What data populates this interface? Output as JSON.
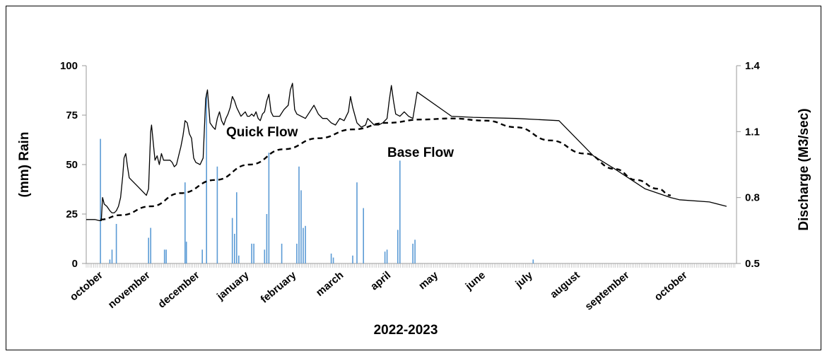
{
  "chart_data": {
    "type": "bar+line",
    "xlabel": "2022-2023",
    "ylabel_left": "(mm) Rain",
    "ylabel_right": "Discharge (M3/sec)",
    "y_left_lim": [
      0,
      100
    ],
    "y_left_ticks": [
      0,
      25,
      50,
      75,
      100
    ],
    "y_right_lim": [
      0.5,
      1.4
    ],
    "y_right_ticks": [
      0.5,
      0.8,
      1.1,
      1.4
    ],
    "months": [
      "october",
      "november",
      "december",
      "january",
      "february",
      "march",
      "april",
      "may",
      "june",
      "july",
      "august",
      "september",
      "october"
    ],
    "annotations": [
      "Quick Flow",
      "Base Flow"
    ],
    "rain": {
      "name": "Rain",
      "color": "#5b9bd5",
      "points": [
        [
          0.33,
          63
        ],
        [
          0.55,
          2
        ],
        [
          0.6,
          7
        ],
        [
          0.7,
          20
        ],
        [
          1.45,
          13
        ],
        [
          1.5,
          18
        ],
        [
          1.82,
          7
        ],
        [
          1.86,
          7
        ],
        [
          2.3,
          41
        ],
        [
          2.33,
          11
        ],
        [
          2.7,
          7
        ],
        [
          2.8,
          86
        ],
        [
          3.05,
          49
        ],
        [
          3.4,
          23
        ],
        [
          3.45,
          15
        ],
        [
          3.5,
          36
        ],
        [
          3.55,
          4
        ],
        [
          3.85,
          10
        ],
        [
          3.9,
          10
        ],
        [
          4.15,
          7
        ],
        [
          4.2,
          25
        ],
        [
          4.25,
          56
        ],
        [
          4.55,
          10
        ],
        [
          4.9,
          10
        ],
        [
          4.95,
          49
        ],
        [
          5.0,
          37
        ],
        [
          5.05,
          18
        ],
        [
          5.1,
          19
        ],
        [
          5.7,
          5
        ],
        [
          5.75,
          3
        ],
        [
          6.2,
          4
        ],
        [
          6.3,
          41
        ],
        [
          6.45,
          28
        ],
        [
          6.95,
          6
        ],
        [
          7.0,
          7
        ],
        [
          7.25,
          17
        ],
        [
          7.3,
          52
        ],
        [
          7.6,
          10
        ],
        [
          7.65,
          12
        ],
        [
          10.4,
          2
        ]
      ]
    },
    "discharge": {
      "name": "Discharge",
      "color": "#000000",
      "points": [
        [
          0,
          0.7
        ],
        [
          0.1,
          0.7
        ],
        [
          0.2,
          0.7
        ],
        [
          0.3,
          0.695
        ],
        [
          0.35,
          0.695
        ],
        [
          0.38,
          0.8
        ],
        [
          0.42,
          0.77
        ],
        [
          0.48,
          0.76
        ],
        [
          0.55,
          0.74
        ],
        [
          0.6,
          0.73
        ],
        [
          0.65,
          0.73
        ],
        [
          0.7,
          0.74
        ],
        [
          0.75,
          0.76
        ],
        [
          0.8,
          0.8
        ],
        [
          0.85,
          0.9
        ],
        [
          0.88,
          0.98
        ],
        [
          0.92,
          1.0
        ],
        [
          0.96,
          0.94
        ],
        [
          1.0,
          0.89
        ],
        [
          1.2,
          0.85
        ],
        [
          1.4,
          0.81
        ],
        [
          1.45,
          0.84
        ],
        [
          1.48,
          1.0
        ],
        [
          1.5,
          1.1
        ],
        [
          1.52,
          1.13
        ],
        [
          1.56,
          1.05
        ],
        [
          1.6,
          0.97
        ],
        [
          1.65,
          0.99
        ],
        [
          1.7,
          0.95
        ],
        [
          1.75,
          1.0
        ],
        [
          1.8,
          0.97
        ],
        [
          1.85,
          0.97
        ],
        [
          1.95,
          0.97
        ],
        [
          2.0,
          0.96
        ],
        [
          2.05,
          0.94
        ],
        [
          2.1,
          0.95
        ],
        [
          2.15,
          0.99
        ],
        [
          2.2,
          1.03
        ],
        [
          2.25,
          1.08
        ],
        [
          2.28,
          1.12
        ],
        [
          2.3,
          1.15
        ],
        [
          2.35,
          1.14
        ],
        [
          2.4,
          1.09
        ],
        [
          2.45,
          1.07
        ],
        [
          2.5,
          0.98
        ],
        [
          2.55,
          0.96
        ],
        [
          2.65,
          0.95
        ],
        [
          2.72,
          0.98
        ],
        [
          2.78,
          1.25
        ],
        [
          2.82,
          1.29
        ],
        [
          2.88,
          1.14
        ],
        [
          2.95,
          1.12
        ],
        [
          3.0,
          1.11
        ],
        [
          3.05,
          1.16
        ],
        [
          3.1,
          1.19
        ],
        [
          3.15,
          1.15
        ],
        [
          3.2,
          1.13
        ],
        [
          3.25,
          1.16
        ],
        [
          3.3,
          1.18
        ],
        [
          3.35,
          1.21
        ],
        [
          3.4,
          1.26
        ],
        [
          3.45,
          1.24
        ],
        [
          3.5,
          1.21
        ],
        [
          3.55,
          1.19
        ],
        [
          3.6,
          1.17
        ],
        [
          3.65,
          1.18
        ],
        [
          3.7,
          1.19
        ],
        [
          3.75,
          1.17
        ],
        [
          3.8,
          1.17
        ],
        [
          3.85,
          1.18
        ],
        [
          3.9,
          1.17
        ],
        [
          3.95,
          1.19
        ],
        [
          4.0,
          1.16
        ],
        [
          4.05,
          1.15
        ],
        [
          4.1,
          1.18
        ],
        [
          4.15,
          1.19
        ],
        [
          4.2,
          1.24
        ],
        [
          4.25,
          1.27
        ],
        [
          4.3,
          1.19
        ],
        [
          4.35,
          1.17
        ],
        [
          4.4,
          1.17
        ],
        [
          4.5,
          1.17
        ],
        [
          4.6,
          1.2
        ],
        [
          4.7,
          1.22
        ],
        [
          4.75,
          1.29
        ],
        [
          4.8,
          1.32
        ],
        [
          4.85,
          1.2
        ],
        [
          4.9,
          1.18
        ],
        [
          5.0,
          1.17
        ],
        [
          5.1,
          1.16
        ],
        [
          5.2,
          1.19
        ],
        [
          5.3,
          1.22
        ],
        [
          5.4,
          1.18
        ],
        [
          5.5,
          1.16
        ],
        [
          5.6,
          1.16
        ],
        [
          5.7,
          1.14
        ],
        [
          5.8,
          1.13
        ],
        [
          5.9,
          1.16
        ],
        [
          6.0,
          1.15
        ],
        [
          6.1,
          1.19
        ],
        [
          6.15,
          1.26
        ],
        [
          6.2,
          1.21
        ],
        [
          6.3,
          1.14
        ],
        [
          6.4,
          1.12
        ],
        [
          6.5,
          1.13
        ],
        [
          6.55,
          1.16
        ],
        [
          6.6,
          1.15
        ],
        [
          6.7,
          1.13
        ],
        [
          6.8,
          1.13
        ],
        [
          6.9,
          1.14
        ],
        [
          7.0,
          1.16
        ],
        [
          7.05,
          1.24
        ],
        [
          7.1,
          1.31
        ],
        [
          7.15,
          1.24
        ],
        [
          7.2,
          1.18
        ],
        [
          7.3,
          1.17
        ],
        [
          7.4,
          1.19
        ],
        [
          7.5,
          1.17
        ],
        [
          7.6,
          1.16
        ],
        [
          7.7,
          1.28
        ],
        [
          8.5,
          1.17
        ],
        [
          9.0,
          1.165
        ],
        [
          10.0,
          1.16
        ],
        [
          11.0,
          1.15
        ],
        [
          11.8,
          0.99
        ],
        [
          12.3,
          0.93
        ],
        [
          13.0,
          0.84
        ],
        [
          13.6,
          0.8
        ],
        [
          13.8,
          0.79
        ],
        [
          14.5,
          0.78
        ],
        [
          14.9,
          0.76
        ]
      ]
    },
    "base_flow": {
      "name": "Base Flow",
      "color": "#000000",
      "points": [
        [
          0.33,
          0.7
        ],
        [
          0.8,
          0.72
        ],
        [
          1.5,
          0.76
        ],
        [
          2.2,
          0.82
        ],
        [
          3.0,
          0.88
        ],
        [
          3.8,
          0.95
        ],
        [
          4.6,
          1.02
        ],
        [
          5.4,
          1.07
        ],
        [
          6.2,
          1.11
        ],
        [
          7.0,
          1.14
        ],
        [
          7.8,
          1.155
        ],
        [
          8.5,
          1.16
        ],
        [
          9.3,
          1.15
        ],
        [
          10.0,
          1.12
        ],
        [
          10.8,
          1.06
        ],
        [
          11.6,
          1.0
        ],
        [
          12.3,
          0.93
        ],
        [
          12.8,
          0.88
        ],
        [
          13.3,
          0.84
        ],
        [
          13.6,
          0.81
        ]
      ]
    }
  }
}
